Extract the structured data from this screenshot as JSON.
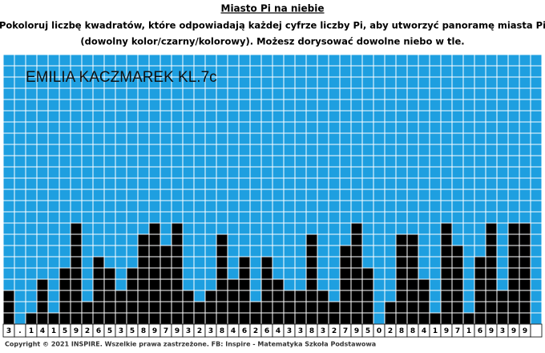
{
  "header": {
    "title": "Miasto Pi na niebie",
    "instructions": [
      "Pokoloruj liczbę kwadratów, które odpowiadają każdej cyfrze liczby Pi, aby utworzyć panoramę miasta Pi",
      "(dowolny kolor/czarny/kolorowy). Możesz dorysować dowolne niebo w tle."
    ]
  },
  "student": "EMILIA KACZMAREK KL.7c",
  "digits": [
    "3",
    ".",
    "1",
    "4",
    "1",
    "5",
    "9",
    "2",
    "6",
    "5",
    "3",
    "5",
    "8",
    "9",
    "7",
    "9",
    "3",
    "2",
    "3",
    "8",
    "4",
    "6",
    "2",
    "6",
    "4",
    "3",
    "3",
    "8",
    "3",
    "2",
    "7",
    "9",
    "5",
    "0",
    "2",
    "8",
    "8",
    "4",
    "1",
    "9",
    "7",
    "1",
    "6",
    "9",
    "3",
    "9",
    "9"
  ],
  "footer": "Copyright © 2021 INSPIRE. Wszelkie prawa zastrzeżone. FB: Inspire - Matematyka Szkoła Podstawowa"
}
